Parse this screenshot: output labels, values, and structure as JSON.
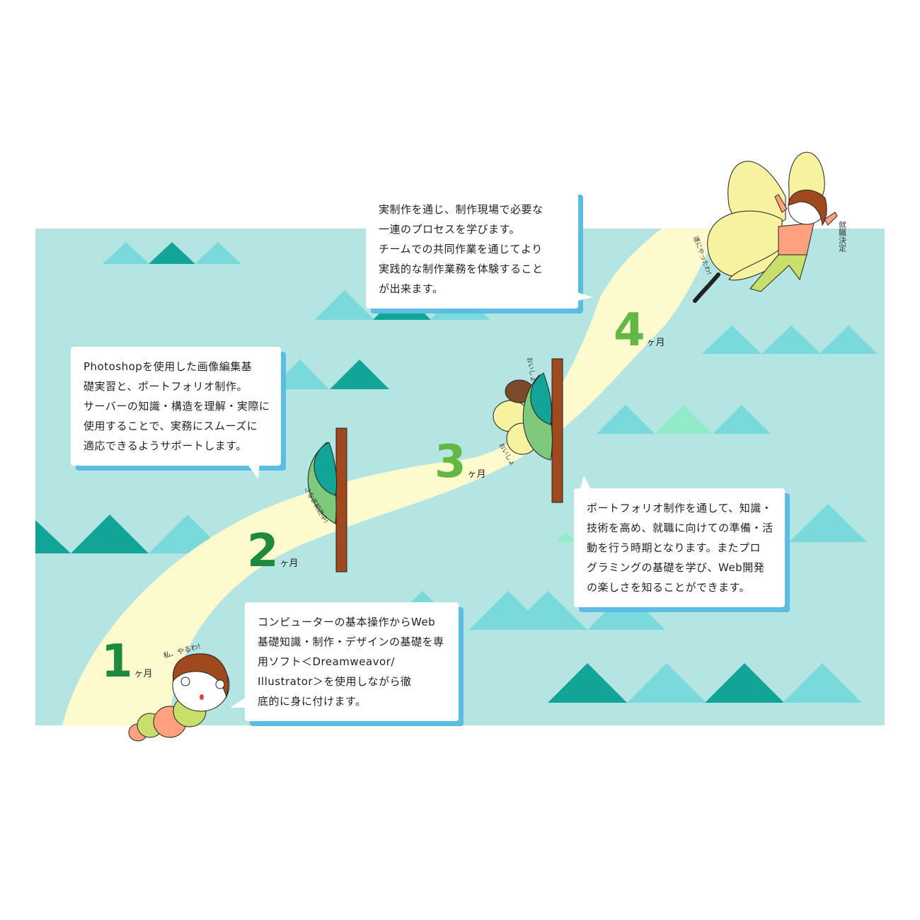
{
  "colors": {
    "sky": "#b4e5e2",
    "triangle_dark": "#12a597",
    "triangle_light": "#7ad9db",
    "triangle_mint": "#93ecc9",
    "road": "#fdfacd",
    "month_dark": "#1d8a3f",
    "month_light": "#62b745",
    "bubble_shadow": "#5bbde4",
    "trunk": "#a0491f"
  },
  "months": [
    {
      "number": "1",
      "unit": "ヶ月"
    },
    {
      "number": "2",
      "unit": "ヶ月"
    },
    {
      "number": "3",
      "unit": "ヶ月"
    },
    {
      "number": "4",
      "unit": "ヶ月"
    }
  ],
  "bubbles": {
    "month1": {
      "lines": [
        "コンピューターの基本操作からWeb",
        "基礎知識・制作・デザインの基礎を専",
        "用ソフト＜Dreamweavor/",
        "Illustrator＞を使用しながら徹",
        "底的に身に付けます。"
      ]
    },
    "month2": {
      "lines": [
        "Photoshopを使用した画像編集基",
        "礎実習と、ポートフォリオ制作。",
        "サーバーの知識・構造を理解・実際に",
        "使用することで、実務にスムーズに",
        "適応できるようサポートします。"
      ]
    },
    "month3": {
      "lines": [
        "ポートフォリオ制作を通して、知識・",
        "技術を高め、就職に向けての準備・活",
        "動を行う時期となります。またプロ",
        "グラミングの基礎を学び、Web開発",
        "の楽しさを知ることができます。"
      ]
    },
    "month4": {
      "lines": [
        "実制作を通じ、制作現場で必要な",
        "一連のプロセスを学びます。",
        "チームでの共同作業を通じてより",
        "実践的な制作業務を体験すること",
        "が出来ます。"
      ]
    }
  },
  "characters": {
    "caterpillar": {
      "caption": "私、やるわ!"
    },
    "leaf_month2": {
      "caption": "さなぎ前进中!"
    },
    "pupa_month3": {
      "caption_top": "おいしょ",
      "caption_bottom": "おいしょ"
    },
    "butterfly": {
      "caption_stamp": "就職決定",
      "caption_side": "遂にやったわ!"
    }
  }
}
